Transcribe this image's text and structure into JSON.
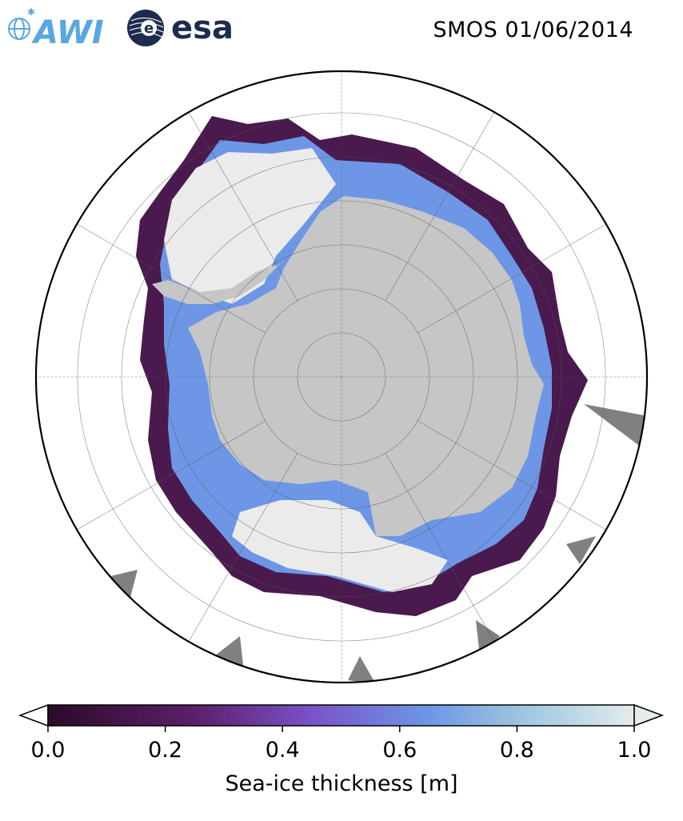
{
  "header": {
    "title": "SMOS 01/06/2014",
    "logos": [
      {
        "name": "awi-logo",
        "text": "AWI",
        "color": "#5aa7e0"
      },
      {
        "name": "esa-logo",
        "text": "esa",
        "color": "#1d2b4f"
      }
    ]
  },
  "map": {
    "projection": "south-polar-stereographic",
    "colors": {
      "land": "#c6c6c6",
      "open_water": "#ffffff",
      "thick_ice": "#ebebeb",
      "no_data": "#808080",
      "ice_edge": "#4a1a4e"
    }
  },
  "colorbar": {
    "label": "Sea-ice thickness [m]",
    "ticks": [
      "0.0",
      "0.2",
      "0.4",
      "0.6",
      "0.8",
      "1.0"
    ],
    "min": 0.0,
    "max": 1.0,
    "colormap": [
      {
        "value": 0.0,
        "color": "#2b0b28"
      },
      {
        "value": 0.25,
        "color": "#5c1f6b"
      },
      {
        "value": 0.45,
        "color": "#7a52c8"
      },
      {
        "value": 0.65,
        "color": "#6d97e6"
      },
      {
        "value": 0.8,
        "color": "#9ac3e0"
      },
      {
        "value": 1.0,
        "color": "#e4eceb"
      }
    ],
    "extend": "both"
  }
}
